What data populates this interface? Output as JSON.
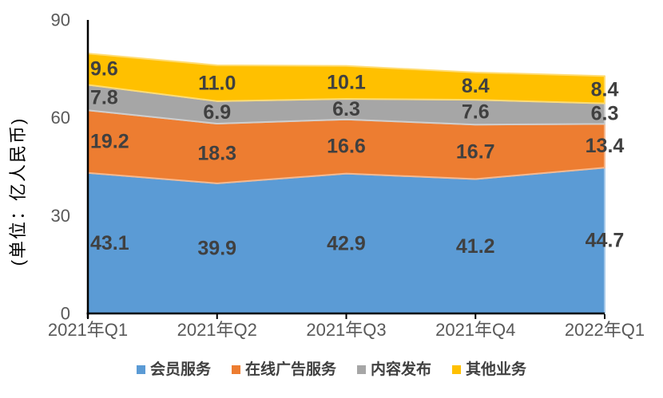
{
  "chart_data": {
    "type": "area",
    "stacked": true,
    "title": "",
    "ylabel": "(单位：亿人民币)",
    "xlabel": "",
    "categories": [
      "2021年Q1",
      "2021年Q2",
      "2021年Q3",
      "2021年Q4",
      "2022年Q1"
    ],
    "series": [
      {
        "name": "会员服务",
        "color": "#5B9BD5",
        "values": [
          43.1,
          39.9,
          42.9,
          41.2,
          44.7
        ]
      },
      {
        "name": "在线广告服务",
        "color": "#ED7D31",
        "values": [
          19.2,
          18.3,
          16.6,
          16.7,
          13.4
        ]
      },
      {
        "name": "内容发布",
        "color": "#A6A6A6",
        "values": [
          7.8,
          6.9,
          6.3,
          7.6,
          6.3
        ]
      },
      {
        "name": "其他业务",
        "color": "#FFC000",
        "values": [
          9.6,
          11.0,
          10.1,
          8.4,
          8.4
        ]
      }
    ],
    "ylim": [
      0,
      90
    ],
    "yticks": [
      0,
      30,
      60,
      90
    ],
    "grid": false,
    "legend_position": "bottom",
    "label_decimals": 1
  },
  "colors": {
    "data_label": "#404040",
    "axis_text": "#595959",
    "axis_line": "#000000",
    "background": "#FFFFFF"
  }
}
